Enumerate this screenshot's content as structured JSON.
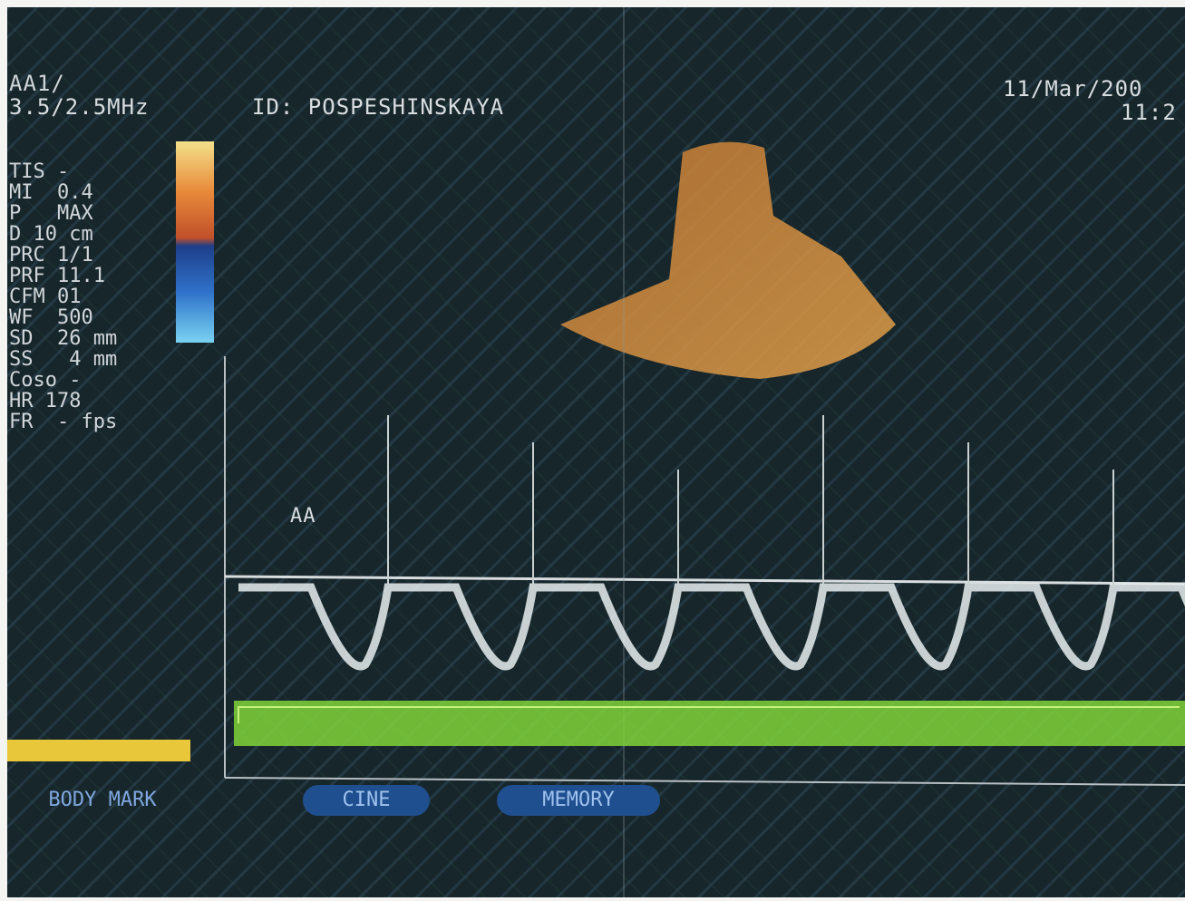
{
  "header": {
    "probe": "AA1/",
    "frequency": "3.5/2.5MHz",
    "patient_id": "ID: POSPESHINSKAYA",
    "date": "11/Mar/200",
    "time": "11:2"
  },
  "parameters": [
    "TIS -",
    "MI  0.4",
    "P   MAX",
    "D 10 cm",
    "PRC 1/1",
    "PRF 11.1",
    "CFM 01",
    "WF  500",
    "SD  26 mm",
    "SS   4 mm",
    "Coso -",
    "HR 178",
    "FR  - fps"
  ],
  "waveform_label": "AA",
  "buttons": {
    "body_mark": "BODY MARK",
    "cine": "CINE",
    "memory": "MEMORY"
  }
}
